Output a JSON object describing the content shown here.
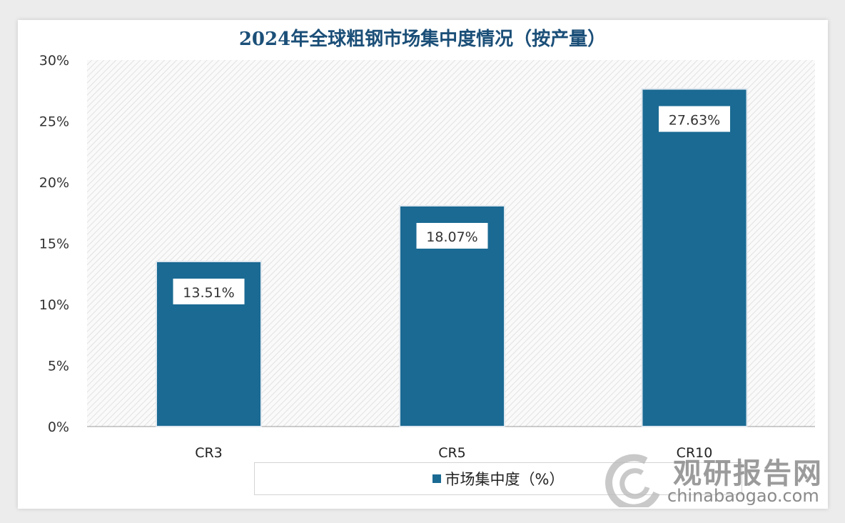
{
  "chart_data": {
    "type": "bar",
    "title": "2024年全球粗钢市场集中度情况（按产量）",
    "categories": [
      "CR3",
      "CR5",
      "CR10"
    ],
    "series": [
      {
        "name": "市场集中度（%）",
        "values": [
          13.51,
          18.07,
          27.63
        ]
      }
    ],
    "data_labels": [
      "13.51%",
      "18.07%",
      "27.63%"
    ],
    "yticks": [
      "0%",
      "5%",
      "10%",
      "15%",
      "20%",
      "25%",
      "30%"
    ],
    "ylim": [
      0,
      30
    ],
    "xlabel": "",
    "ylabel": "",
    "legend": "bottom",
    "grid": false,
    "colors": {
      "bar": "#1a6a93",
      "title": "#1b4f78"
    }
  },
  "watermark": {
    "cn": "观研报告网",
    "en": "chinabaogao.com"
  }
}
